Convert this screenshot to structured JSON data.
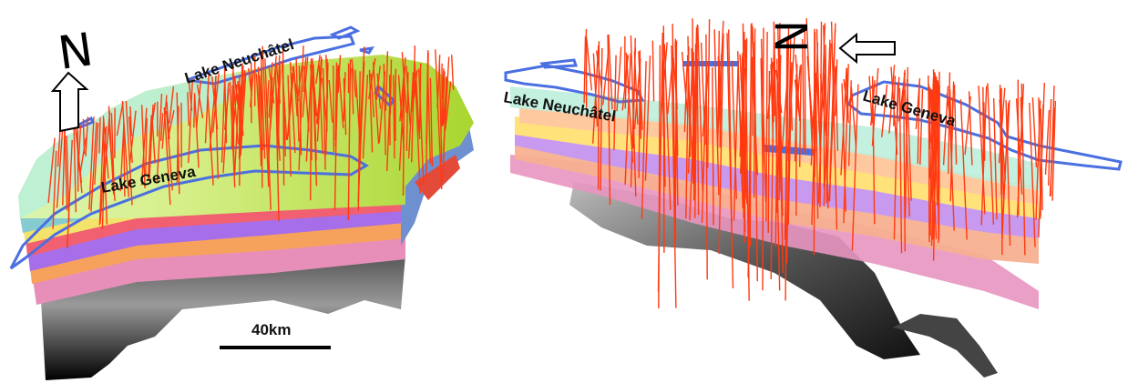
{
  "left_panel": {
    "north_letter": "N",
    "lake_neuchatel": "Lake Neuchâtel",
    "lake_geneva": "Lake Geneva",
    "scale_label": "40km"
  },
  "right_panel": {
    "north_letter": "N",
    "lake_neuchatel": "Lake Neuchâtel",
    "lake_geneva": "Lake Geneva"
  },
  "colors": {
    "fault": "#ff3a10",
    "lake_outline": "#4a6fe0",
    "surface_top": "#b8e04a",
    "surface_cyan": "#a8eedd",
    "layer_orange": "#ffb070",
    "layer_purple": "#b07cf0",
    "layer_pink": "#ef7a9a",
    "layer_yellow": "#ffe26a",
    "basement": "#222222"
  }
}
